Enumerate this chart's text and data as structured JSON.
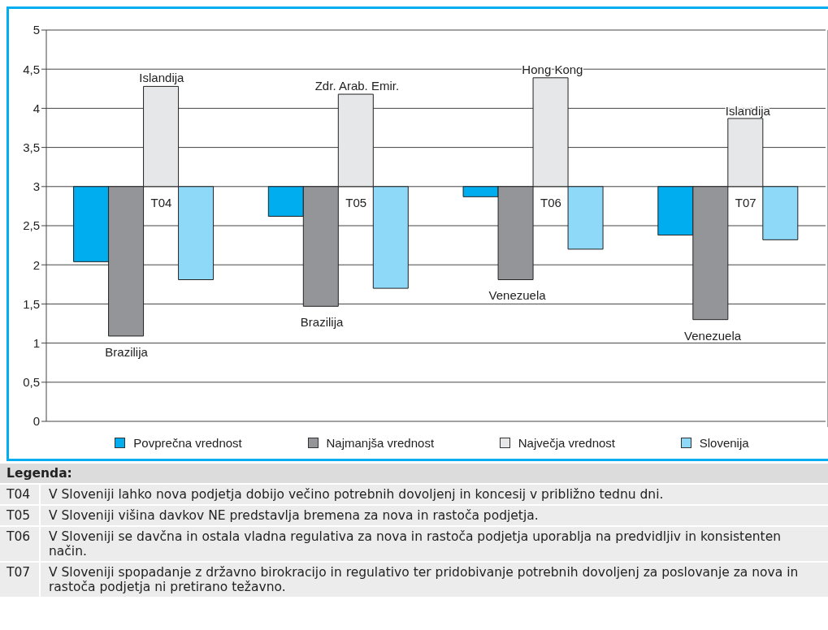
{
  "chart_data": {
    "type": "bar",
    "categories": [
      "T04",
      "T05",
      "T06",
      "T07"
    ],
    "series": [
      {
        "name": "Povprečna vrednost",
        "color": "#00adee",
        "base": [
          3,
          3,
          3,
          3
        ],
        "values": [
          -0.96,
          -0.38,
          -0.13,
          -0.62
        ]
      },
      {
        "name": "Najmanjša vrednost",
        "color": "#949599",
        "base": [
          3,
          3,
          3,
          3
        ],
        "values": [
          -1.91,
          -1.53,
          -1.19,
          -1.7
        ]
      },
      {
        "name": "Največja vrednost",
        "color": "#e6e7e8",
        "base": [
          3,
          3,
          3,
          3
        ],
        "values": [
          1.28,
          1.18,
          1.39,
          0.87
        ]
      },
      {
        "name": "Slovenija",
        "color": "#8ed8f8",
        "base": [
          3,
          3,
          3,
          3
        ],
        "values": [
          -1.19,
          -1.3,
          -0.8,
          -0.68
        ]
      }
    ],
    "ylim": [
      0,
      5
    ],
    "yticks": [
      0,
      {
        "value": 0.5,
        "label": "0,5"
      },
      1,
      {
        "value": 1.5,
        "label": "1,5"
      },
      2,
      {
        "value": 2.5,
        "label": "2,5"
      },
      3,
      {
        "value": 3.5,
        "label": "3,5"
      },
      4,
      {
        "value": 4.5,
        "label": "4,5"
      },
      5
    ],
    "grid": "y",
    "legend": "bottom",
    "annotations": [
      {
        "text": "Islandija",
        "x": "T04",
        "y": 4.28
      },
      {
        "text": "Zdr. Arab. Emir.",
        "x": "T05",
        "y": 4.18
      },
      {
        "text": "Hong Kong",
        "x": "T06",
        "y": 4.39
      },
      {
        "text": "Islandija",
        "x": "T07",
        "y": 3.87
      },
      "Brazilija",
      "Brazilija",
      "Venezuela",
      "Venezuela",
      "Legenda:",
      "V Sloveniji lahko nova podjetja dobijo večino potrebnih dovoljenj in koncesij v približno tednu dni.",
      "V Sloveniji višina davkov NE predstavlja bremena za nova in rastoča podjetja.",
      "V Sloveniji se davčna in ostala vladna regulativa za nova in rastoča podjetja uporablja na predvidljiv in konsistenten način.",
      "V Sloveniji spopadanje z državno birokracijo in regulativo ter pridobivanje potrebnih dovoljenj za poslovanje za nova in rastoča podjetja ni pretirano težavno."
    ]
  }
}
